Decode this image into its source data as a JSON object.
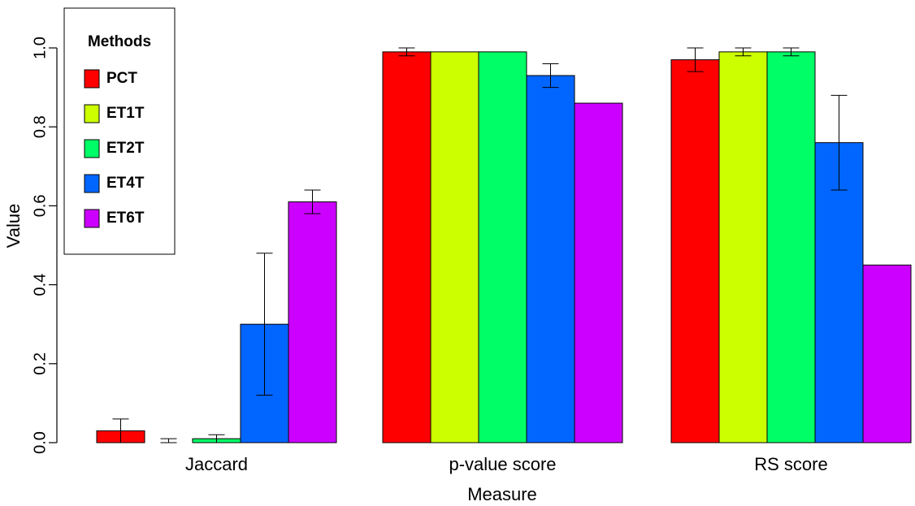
{
  "chart_data": {
    "type": "bar",
    "title": "",
    "xlabel": "Measure",
    "ylabel": "Value",
    "ylim": [
      0,
      1.1
    ],
    "yticks": [
      0.0,
      0.2,
      0.4,
      0.6,
      0.8,
      1.0
    ],
    "ytick_labels": [
      "0.0",
      "0.2",
      "0.4",
      "0.6",
      "0.8",
      "1.0"
    ],
    "categories": [
      "Jaccard",
      "p-value score",
      "RS score"
    ],
    "legend": {
      "title": "Methods",
      "placement": "top-left"
    },
    "series": [
      {
        "name": "PCT",
        "color": "#ff0000",
        "values": [
          0.03,
          0.99,
          0.97
        ],
        "error_low": [
          0.0,
          0.98,
          0.94
        ],
        "error_high": [
          0.06,
          1.0,
          1.0
        ]
      },
      {
        "name": "ET1T",
        "color": "#ccff00",
        "values": [
          0.0,
          0.99,
          0.99
        ],
        "error_low": [
          0.0,
          null,
          0.98
        ],
        "error_high": [
          0.01,
          null,
          1.0
        ]
      },
      {
        "name": "ET2T",
        "color": "#00ff66",
        "values": [
          0.01,
          0.99,
          0.99
        ],
        "error_low": [
          0.0,
          null,
          0.98
        ],
        "error_high": [
          0.02,
          null,
          1.0
        ]
      },
      {
        "name": "ET4T",
        "color": "#0066ff",
        "values": [
          0.3,
          0.93,
          0.76
        ],
        "error_low": [
          0.12,
          0.9,
          0.64
        ],
        "error_high": [
          0.48,
          0.96,
          0.88
        ]
      },
      {
        "name": "ET6T",
        "color": "#cc00ff",
        "values": [
          0.61,
          0.86,
          0.45
        ],
        "error_low": [
          0.58,
          null,
          null
        ],
        "error_high": [
          0.64,
          null,
          null
        ]
      }
    ]
  }
}
